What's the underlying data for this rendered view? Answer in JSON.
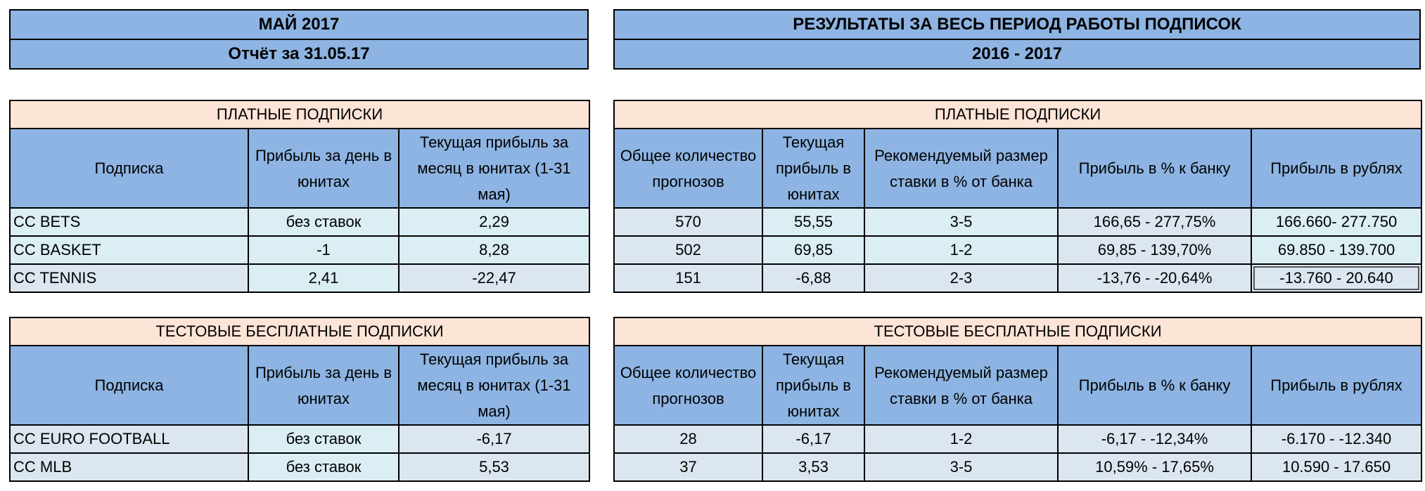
{
  "left_header": {
    "title": "МАЙ 2017",
    "subtitle": "Отчёт за 31.05.17"
  },
  "right_header": {
    "title": "РЕЗУЛЬТАТЫ ЗА ВЕСЬ ПЕРИОД РАБОТЫ ПОДПИСОК",
    "subtitle": "2016 - 2017"
  },
  "left_columns": [
    "Подписка",
    "Прибыль за день в юнитах",
    "Текущая прибыль за месяц в юнитах (1-31 мая)"
  ],
  "right_columns": [
    "Общее количество прогнозов",
    "Текущая прибыль в юнитах",
    "Рекомендуемый размер ставки в % от банка",
    "Прибыль в % к банку",
    "Прибыль в рублях"
  ],
  "paid": {
    "title": "ПЛАТНЫЕ ПОДПИСКИ",
    "rows": [
      {
        "name": "CC BETS",
        "day": "без ставок",
        "month": "2,29",
        "total": "570",
        "units": "55,55",
        "stake": "3-5",
        "pct": "166,65 - 277,75%",
        "rub": "166.660- 277.750"
      },
      {
        "name": "CC BASKET",
        "day": "-1",
        "month": "8,28",
        "total": "502",
        "units": "69,85",
        "stake": "1-2",
        "pct": "69,85 - 139,70%",
        "rub": "69.850 - 139.700"
      },
      {
        "name": "CC TENNIS",
        "day": "2,41",
        "month": "-22,47",
        "total": "151",
        "units": "-6,88",
        "stake": "2-3",
        "pct": "-13,76 - -20,64%",
        "rub": "-13.760 - 20.640"
      }
    ]
  },
  "free": {
    "title": "ТЕСТОВЫЕ БЕСПЛАТНЫЕ ПОДПИСКИ",
    "rows": [
      {
        "name": "CC EURO FOOTBALL",
        "day": "без ставок",
        "month": "-6,17",
        "total": "28",
        "units": "-6,17",
        "stake": "1-2",
        "pct": "-6,17 - -12,34%",
        "rub": "-6.170 - -12.340"
      },
      {
        "name": "CC MLB",
        "day": "без ставок",
        "month": "5,53",
        "total": "37",
        "units": "3,53",
        "stake": "3-5",
        "pct": "10,59% - 17,65%",
        "rub": "10.590 -  17.650"
      }
    ]
  },
  "colors": {
    "header_blue": "#8DB4E2",
    "section_peach": "#FCE4D6",
    "row_cyan": "#DAEEF3",
    "row_blue": "#DCE6F1"
  }
}
